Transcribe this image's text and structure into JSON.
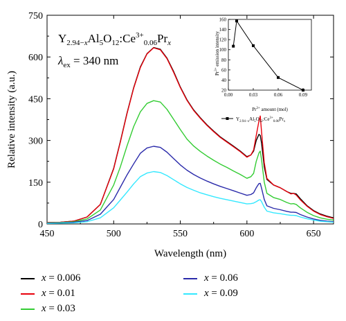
{
  "chart_data": [
    {
      "type": "line",
      "title": "Y2.94−xAl5O12:Ce3+0.06Prx",
      "subtitle": "λex = 340 nm",
      "xlabel": "Wavelength (nm)",
      "ylabel": "Relative intensity (a.u.)",
      "xlim": [
        450,
        665
      ],
      "ylim": [
        0,
        750
      ],
      "x_ticks": [
        450,
        500,
        550,
        600,
        650
      ],
      "y_ticks": [
        0,
        150,
        300,
        450,
        600,
        750
      ],
      "grid": false,
      "legend_position": "bottom",
      "x": [
        450,
        460,
        470,
        480,
        490,
        500,
        505,
        510,
        515,
        520,
        525,
        530,
        535,
        540,
        545,
        550,
        555,
        560,
        565,
        570,
        575,
        580,
        585,
        590,
        595,
        600,
        603,
        605,
        607,
        609,
        610,
        611,
        613,
        615,
        620,
        625,
        630,
        633,
        635,
        637,
        640,
        645,
        650,
        655,
        660,
        665
      ],
      "series": [
        {
          "name": "x = 0.006",
          "color": "#000000",
          "values": [
            5,
            6,
            10,
            25,
            70,
            200,
            296,
            398,
            490,
            564,
            612,
            634,
            628,
            596,
            548,
            492,
            446,
            410,
            382,
            356,
            334,
            313,
            296,
            279,
            262,
            242,
            248,
            262,
            300,
            322,
            318,
            290,
            205,
            160,
            140,
            130,
            116,
            110,
            110,
            108,
            91,
            66,
            48,
            36,
            28,
            22
          ]
        },
        {
          "name": "x = 0.01",
          "color": "#e8000b",
          "values": [
            5,
            6,
            10,
            25,
            70,
            198,
            294,
            396,
            488,
            562,
            611,
            633,
            626,
            594,
            545,
            490,
            444,
            408,
            380,
            354,
            332,
            311,
            294,
            277,
            260,
            240,
            248,
            266,
            318,
            370,
            388,
            330,
            220,
            164,
            140,
            130,
            116,
            108,
            110,
            104,
            87,
            64,
            46,
            34,
            26,
            20
          ]
        },
        {
          "name": "x = 0.03",
          "color": "#33cc33",
          "values": [
            4,
            5,
            8,
            18,
            50,
            140,
            205,
            280,
            350,
            403,
            433,
            443,
            438,
            412,
            376,
            339,
            305,
            280,
            261,
            244,
            229,
            215,
            203,
            190,
            178,
            164,
            170,
            182,
            225,
            255,
            262,
            230,
            150,
            110,
            95,
            88,
            77,
            72,
            73,
            70,
            58,
            42,
            30,
            22,
            17,
            14
          ]
        },
        {
          "name": "x = 0.06",
          "color": "#2a2aaa",
          "values": [
            3,
            4,
            6,
            12,
            35,
            88,
            132,
            176,
            216,
            254,
            273,
            279,
            275,
            258,
            235,
            212,
            193,
            178,
            165,
            154,
            144,
            135,
            127,
            119,
            111,
            103,
            106,
            112,
            130,
            145,
            146,
            128,
            88,
            65,
            56,
            51,
            45,
            42,
            42,
            41,
            34,
            25,
            18,
            13,
            10,
            8
          ]
        },
        {
          "name": "x = 0.09",
          "color": "#33e8ff",
          "values": [
            2,
            3,
            4,
            8,
            22,
            58,
            86,
            114,
            144,
            170,
            183,
            188,
            185,
            174,
            159,
            144,
            131,
            121,
            112,
            105,
            98,
            92,
            87,
            82,
            77,
            72,
            73,
            75,
            80,
            86,
            87,
            80,
            60,
            46,
            40,
            37,
            33,
            31,
            31,
            30,
            25,
            19,
            14,
            10,
            8,
            6
          ]
        }
      ]
    },
    {
      "type": "line",
      "title": "",
      "xlabel": "Pr3+ amount (mol)",
      "ylabel": "Pr3+ emission intensity",
      "xlim": [
        0.0,
        0.1
      ],
      "ylim": [
        20,
        160
      ],
      "x_ticks": [
        0.0,
        0.03,
        0.06,
        0.09
      ],
      "x_tick_labels": [
        "0.00",
        "0.03",
        "0.06",
        "0.09"
      ],
      "y_ticks": [
        20,
        40,
        60,
        80,
        100,
        120,
        140,
        160
      ],
      "grid": false,
      "legend_position": "bottom-right",
      "series": [
        {
          "name": "Y2.94−xAl5O12:Ce3+0.06Prx",
          "color": "#000000",
          "x": [
            0.006,
            0.01,
            0.03,
            0.06,
            0.09
          ],
          "values": [
            107,
            157,
            108,
            45,
            20
          ]
        }
      ]
    }
  ],
  "main_annotation": {
    "formula": {
      "base": "Y",
      "sub1": "2.94−",
      "sub1_var": "x",
      "mid": "Al",
      "sub2": "5",
      "o": "O",
      "sub3": "12",
      "ce": ":Ce",
      "sup": "3+",
      "sub4": "0.06",
      "pr": "Pr",
      "sub5": "x"
    },
    "excitation": {
      "lambda": "λ",
      "sub": "ex",
      "text": " = 340 nm"
    }
  },
  "inset_legend": {
    "base": "Y",
    "sub1": "2.94−x",
    "mid": "Al",
    "sub2": "5",
    "o": "O",
    "sub3": "12",
    "ce": ":Ce",
    "sup": "3+",
    "sub4": "0.06",
    "pr": "Pr",
    "sub5": "x"
  },
  "inset_ylabel": {
    "pr": "Pr",
    "sup": "3+",
    "rest": " emission intensity"
  },
  "inset_xlabel": {
    "pr": "Pr",
    "sup": "3+",
    "rest": " amount (mol)"
  },
  "legend": [
    {
      "var": "x",
      "text": " = 0.006",
      "color": "#000000"
    },
    {
      "var": "x",
      "text": " = 0.01",
      "color": "#e8000b"
    },
    {
      "var": "x",
      "text": " = 0.03",
      "color": "#33cc33"
    },
    {
      "var": "x",
      "text": " = 0.06",
      "color": "#2a2aaa"
    },
    {
      "var": "x",
      "text": " = 0.09",
      "color": "#33e8ff"
    }
  ]
}
